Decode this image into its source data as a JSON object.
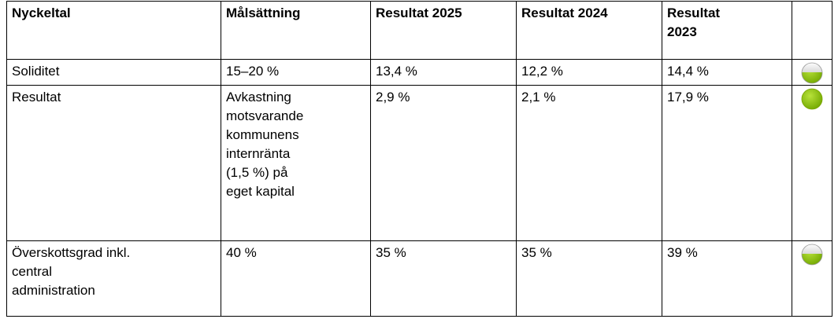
{
  "table": {
    "header": [
      "Nyckeltal",
      "Målsättning",
      "Resultat 2025",
      "Resultat 2024",
      [
        "Resultat",
        "2023"
      ]
    ],
    "rows": [
      [
        "Soliditet",
        "15–20 %",
        "13,4 %",
        "12,2 %",
        "14,4 %"
      ],
      [
        "Resultat",
        [
          "Avkastning",
          "motsvarande",
          "kommunens",
          "internränta",
          "(1,5 %) på",
          "eget kapital"
        ],
        "2,9 %",
        "2,1 %",
        "17,9 %"
      ],
      [
        [
          "Överskottsgrad inkl.",
          "central",
          "administration"
        ],
        "40 %",
        "35 %",
        "35 %",
        "39 %"
      ]
    ]
  }
}
